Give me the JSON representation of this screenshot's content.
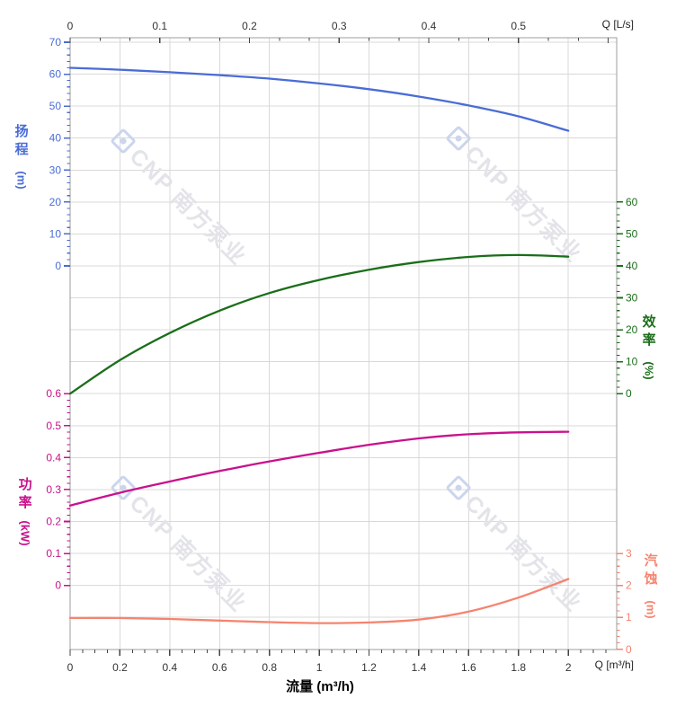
{
  "watermark": {
    "text": "CNP 南方泵业"
  },
  "labels": {
    "flow_axis_title": "流量 (m³/h)",
    "top_axis_unit": "Q [L/s]",
    "bottom_axis_unit": "Q [m³/h]",
    "head": {
      "title": "扬程",
      "unit": "(m)"
    },
    "efficiency": {
      "title": "效率",
      "unit": "(%)"
    },
    "power": {
      "title": "功率",
      "unit": "(kW)"
    },
    "npsh": {
      "title": "汽蚀",
      "unit": "(m)"
    }
  },
  "colors": {
    "head": "#4a6cd6",
    "efficiency": "#1a6e1a",
    "power": "#c9118c",
    "npsh": "#f5846f",
    "grid": "#d9d9d9",
    "border": "#9c9c9c",
    "flow_ticks": "#444444",
    "flow_labels": "#333333",
    "watermark_text": "#e3e4e9",
    "watermark_logo": "#ccd5ec"
  },
  "chart_data": {
    "type": "line",
    "title": "",
    "x_axis_bottom": {
      "label": "Q [m³/h]",
      "title": "流量 (m³/h)",
      "tick_values": [
        0,
        0.2,
        0.4,
        0.6,
        0.8,
        1,
        1.2,
        1.4,
        1.6,
        1.8,
        2
      ],
      "tick_labels": [
        "0",
        "0.2",
        "0.4",
        "0.6",
        "0.8",
        "1",
        "1.2",
        "1.4",
        "1.6",
        "1.8",
        "2"
      ],
      "range": [
        0,
        2.2
      ]
    },
    "x_axis_top": {
      "label": "Q [L/s]",
      "tick_values": [
        0,
        0.1,
        0.2,
        0.3,
        0.4,
        0.5
      ],
      "tick_labels": [
        "0",
        "0.1",
        "0.2",
        "0.3",
        "0.4",
        "0.5"
      ],
      "range": [
        0,
        0.61
      ]
    },
    "x": [
      0,
      0.2,
      0.4,
      0.6,
      0.8,
      1,
      1.2,
      1.4,
      1.6,
      1.8,
      2
    ],
    "series": [
      {
        "name": "扬程",
        "unit": "m",
        "axis_side": "left",
        "values": [
          62,
          61.4,
          60.6,
          59.7,
          58.6,
          57.1,
          55.3,
          53,
          50.2,
          46.8,
          42.3
        ],
        "axis_tick_values": [
          0,
          10,
          20,
          30,
          40,
          50,
          60,
          70
        ],
        "axis_tick_labels": [
          "0",
          "10",
          "20",
          "30",
          "40",
          "50",
          "60",
          "70"
        ],
        "axis_range": [
          0,
          70
        ]
      },
      {
        "name": "效率",
        "unit": "%",
        "axis_side": "right",
        "values": [
          0,
          10.5,
          19,
          26,
          31.5,
          35.6,
          38.8,
          41.2,
          42.8,
          43.4,
          42.9
        ],
        "axis_tick_values": [
          0,
          10,
          20,
          30,
          40,
          50,
          60
        ],
        "axis_tick_labels": [
          "0",
          "10",
          "20",
          "30",
          "40",
          "50",
          "60"
        ],
        "axis_range": [
          0,
          60
        ]
      },
      {
        "name": "功率",
        "unit": "kW",
        "axis_side": "left",
        "values": [
          0.25,
          0.29,
          0.325,
          0.358,
          0.388,
          0.415,
          0.44,
          0.46,
          0.473,
          0.479,
          0.481
        ],
        "axis_tick_values": [
          0,
          0.1,
          0.2,
          0.3,
          0.4,
          0.5,
          0.6
        ],
        "axis_tick_labels": [
          "0",
          "0.1",
          "0.2",
          "0.3",
          "0.4",
          "0.5",
          "0.6"
        ],
        "axis_range": [
          0,
          0.6
        ]
      },
      {
        "name": "汽蚀",
        "unit": "m",
        "axis_side": "right",
        "values": [
          0.98,
          0.98,
          0.95,
          0.9,
          0.85,
          0.82,
          0.84,
          0.93,
          1.18,
          1.62,
          2.2
        ],
        "axis_tick_values": [
          0,
          1,
          2,
          3
        ],
        "axis_tick_labels": [
          "0",
          "1",
          "2",
          "3"
        ],
        "axis_range": [
          0,
          3
        ]
      }
    ],
    "grid": true,
    "legend": "none"
  }
}
